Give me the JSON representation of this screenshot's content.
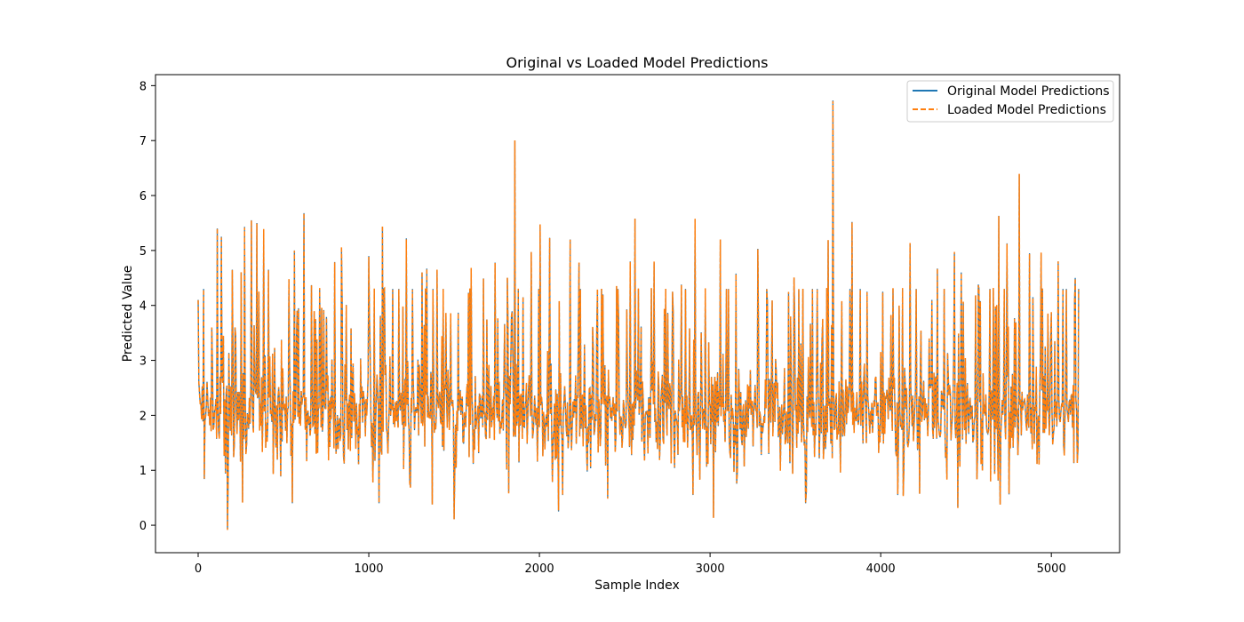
{
  "chart_data": {
    "type": "line",
    "title": "Original vs Loaded Model Predictions",
    "xlabel": "Sample Index",
    "ylabel": "Predicted Value",
    "xlim": [
      -250,
      5400
    ],
    "ylim": [
      -0.5,
      8.2
    ],
    "xticks": [
      0,
      1000,
      2000,
      3000,
      4000,
      5000
    ],
    "yticks": [
      0,
      1,
      2,
      3,
      4,
      5,
      6,
      7,
      8
    ],
    "grid": false,
    "legend": "upper-right",
    "n_samples": 5160,
    "series": [
      {
        "name": "Original Model Predictions",
        "color": "#1f77b4",
        "style": "solid"
      },
      {
        "name": "Loaded Model Predictions",
        "color": "#ff7f0e",
        "style": "dashed"
      }
    ],
    "peaks": [
      {
        "x": 0,
        "y": 4.1
      },
      {
        "x": 30,
        "y": 4.3
      },
      {
        "x": 80,
        "y": 3.6
      },
      {
        "x": 110,
        "y": 5.4
      },
      {
        "x": 135,
        "y": 5.25
      },
      {
        "x": 200,
        "y": 4.65
      },
      {
        "x": 250,
        "y": 4.6
      },
      {
        "x": 270,
        "y": 5.43
      },
      {
        "x": 310,
        "y": 5.55
      },
      {
        "x": 345,
        "y": 5.5
      },
      {
        "x": 385,
        "y": 5.38
      },
      {
        "x": 410,
        "y": 4.65
      },
      {
        "x": 530,
        "y": 4.47
      },
      {
        "x": 565,
        "y": 5.0
      },
      {
        "x": 620,
        "y": 5.68
      },
      {
        "x": 665,
        "y": 4.37
      },
      {
        "x": 800,
        "y": 4.79
      },
      {
        "x": 840,
        "y": 5.05
      },
      {
        "x": 1000,
        "y": 4.9
      },
      {
        "x": 1080,
        "y": 5.43
      },
      {
        "x": 1140,
        "y": 4.3
      },
      {
        "x": 1220,
        "y": 5.22
      },
      {
        "x": 1310,
        "y": 4.6
      },
      {
        "x": 1340,
        "y": 4.67
      },
      {
        "x": 1400,
        "y": 4.65
      },
      {
        "x": 1600,
        "y": 4.67
      },
      {
        "x": 1670,
        "y": 4.49
      },
      {
        "x": 1740,
        "y": 4.78
      },
      {
        "x": 1810,
        "y": 4.5
      },
      {
        "x": 1855,
        "y": 7.0
      },
      {
        "x": 1905,
        "y": 4.15
      },
      {
        "x": 1950,
        "y": 4.97
      },
      {
        "x": 2005,
        "y": 5.47
      },
      {
        "x": 2060,
        "y": 5.23
      },
      {
        "x": 2180,
        "y": 5.2
      },
      {
        "x": 2230,
        "y": 4.78
      },
      {
        "x": 2370,
        "y": 4.2
      },
      {
        "x": 2450,
        "y": 4.35
      },
      {
        "x": 2530,
        "y": 4.8
      },
      {
        "x": 2560,
        "y": 5.58
      },
      {
        "x": 2670,
        "y": 4.78
      },
      {
        "x": 2780,
        "y": 4.25
      },
      {
        "x": 2830,
        "y": 4.38
      },
      {
        "x": 2910,
        "y": 5.57
      },
      {
        "x": 3060,
        "y": 5.2
      },
      {
        "x": 3150,
        "y": 4.58
      },
      {
        "x": 3280,
        "y": 5.03
      },
      {
        "x": 3490,
        "y": 4.5
      },
      {
        "x": 3600,
        "y": 4.3
      },
      {
        "x": 3690,
        "y": 5.18
      },
      {
        "x": 3720,
        "y": 7.73
      },
      {
        "x": 3770,
        "y": 4.06
      },
      {
        "x": 3830,
        "y": 5.52
      },
      {
        "x": 3920,
        "y": 4.25
      },
      {
        "x": 4010,
        "y": 4.25
      },
      {
        "x": 4070,
        "y": 4.3
      },
      {
        "x": 4170,
        "y": 5.12
      },
      {
        "x": 4300,
        "y": 4.1
      },
      {
        "x": 4330,
        "y": 4.67
      },
      {
        "x": 4430,
        "y": 4.96
      },
      {
        "x": 4470,
        "y": 4.6
      },
      {
        "x": 4570,
        "y": 4.38
      },
      {
        "x": 4690,
        "y": 5.63
      },
      {
        "x": 4740,
        "y": 5.13
      },
      {
        "x": 4810,
        "y": 6.38
      },
      {
        "x": 4870,
        "y": 4.95
      },
      {
        "x": 4940,
        "y": 4.95
      },
      {
        "x": 5040,
        "y": 4.8
      },
      {
        "x": 5140,
        "y": 4.5
      },
      {
        "x": 5160,
        "y": 4.3
      }
    ],
    "troughs": [
      {
        "x": 0,
        "y": 0.65
      },
      {
        "x": 170,
        "y": -0.07
      },
      {
        "x": 260,
        "y": 0.42
      },
      {
        "x": 550,
        "y": 0.4
      },
      {
        "x": 620,
        "y": 0.38
      },
      {
        "x": 840,
        "y": 0.32
      },
      {
        "x": 1060,
        "y": 0.4
      },
      {
        "x": 1370,
        "y": 0.38
      },
      {
        "x": 1500,
        "y": 0.11
      },
      {
        "x": 1820,
        "y": 0.6
      },
      {
        "x": 2110,
        "y": 0.25
      },
      {
        "x": 2400,
        "y": 0.5
      },
      {
        "x": 2900,
        "y": 0.55
      },
      {
        "x": 3020,
        "y": 0.14
      },
      {
        "x": 3560,
        "y": 0.4
      },
      {
        "x": 3720,
        "y": 0.58
      },
      {
        "x": 4450,
        "y": 0.33
      },
      {
        "x": 4700,
        "y": 0.38
      }
    ]
  }
}
